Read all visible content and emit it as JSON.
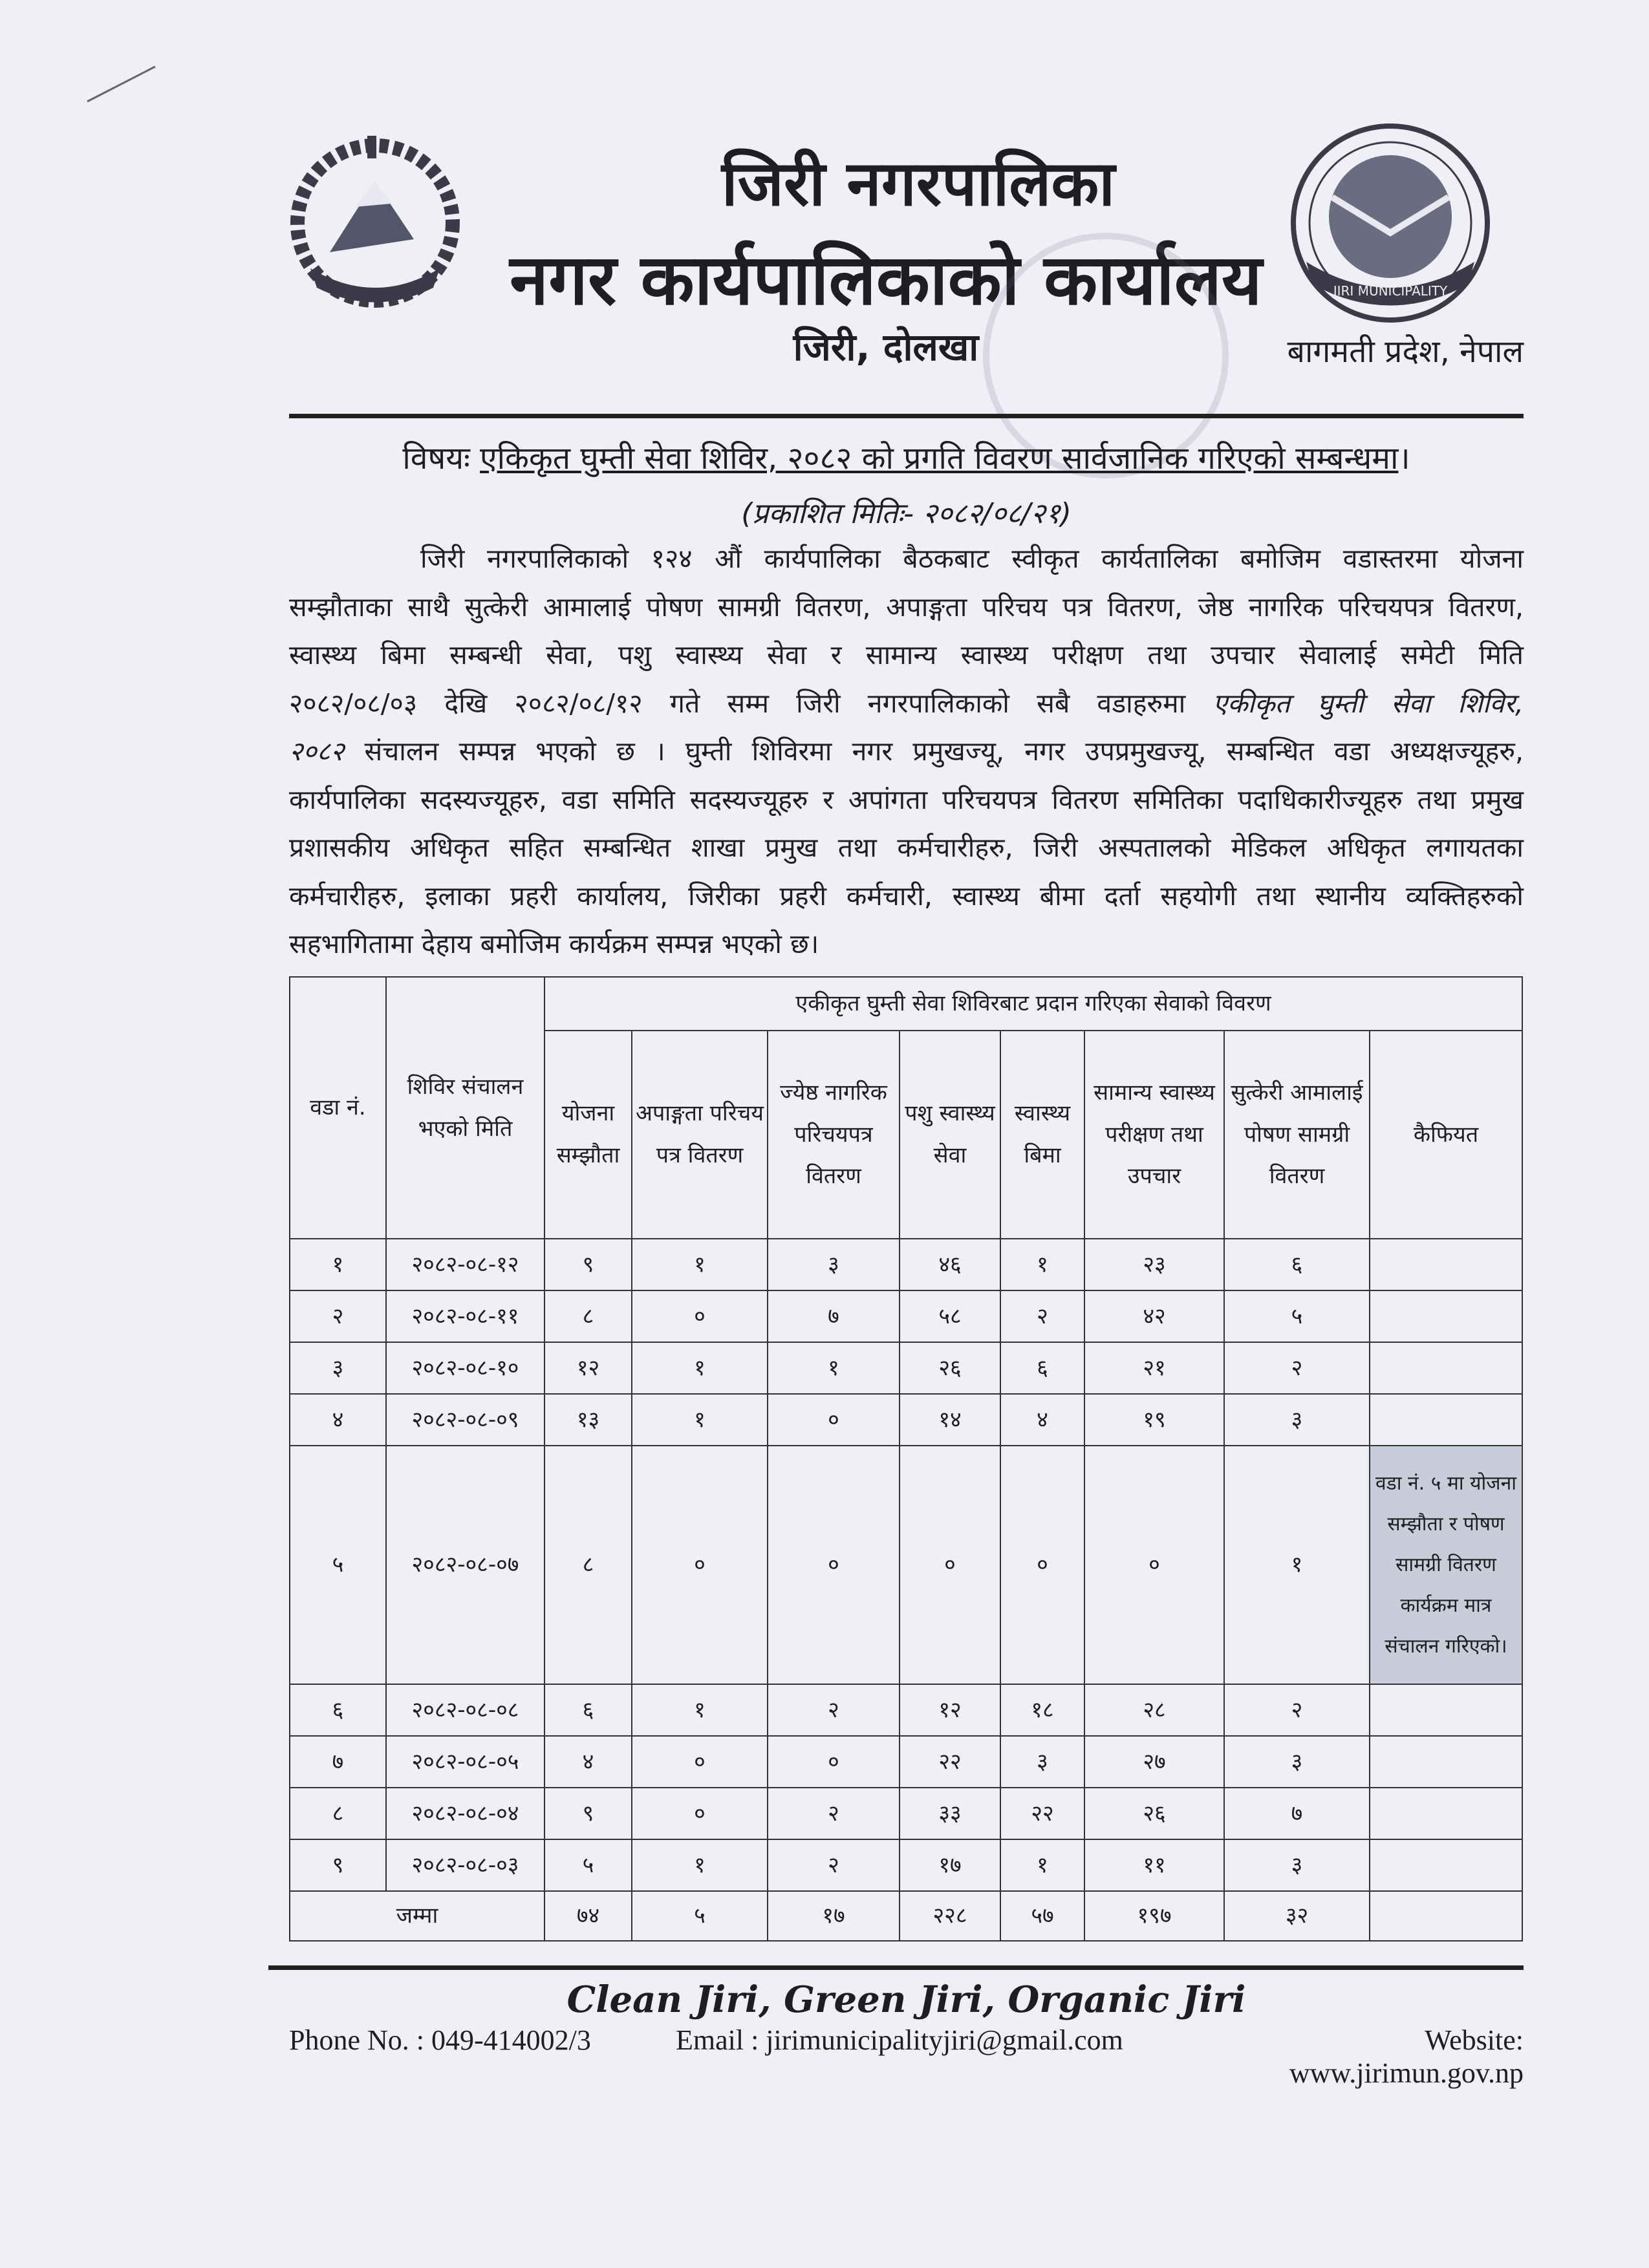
{
  "header": {
    "title_line1": "जिरी नगरपालिका",
    "title_line2": "नगर कार्यपालिकाको कार्यालय",
    "location": "जिरी, दोलखा",
    "province": "बागमती प्रदेश, नेपाल",
    "left_logo": "nepal-government-emblem",
    "right_logo": "jiri-municipality-logo",
    "right_logo_text": "JIRI MUNICIPALITY"
  },
  "subject": {
    "prefix": "विषयः",
    "text": "एकिकृत घुम्ती सेवा शिविर, २०८२ को प्रगति विवरण सार्वजानिक गरिएको सम्बन्धमा",
    "suffix": "।"
  },
  "published_date": "(प्रकाशित मितिः- २०८२/०८/२१)",
  "body_lines": [
    {
      "a": "जिरी नगरपालिकाको १२४ औं कार्यपालिका बैठकबाट स्वीकृत कार्यतालिका बमोजिम वडास्तरमा योजना"
    },
    {
      "a": "सम्झौताका साथै सुत्केरी आमालाई पोषण सामग्री वितरण, अपाङ्गता परिचय पत्र वितरण, जेष्ठ नागरिक परिचयपत्र वितरण,"
    },
    {
      "a": "स्वास्थ्य बिमा सम्बन्धी सेवा, पशु स्वास्थ्य सेवा र सामान्य स्वास्थ्य परीक्षण तथा उपचार सेवालाई समेटी मिति"
    },
    {
      "a": "२०८२/०८/०३ देखि २०८२/०८/१२ गते सम्म जिरी नगरपालिकाको सबै वडाहरुमा ",
      "b": "एकीकृत घुम्ती सेवा शिविर,"
    },
    {
      "b": "२०८२",
      "a": " संचालन सम्पन्न भएको छ । घुम्ती शिविरमा नगर प्रमुखज्यू, नगर उपप्रमुखज्यू, सम्बन्धित वडा अध्यक्षज्यूहरु,"
    },
    {
      "a": "कार्यपालिका सदस्यज्यूहरु, वडा समिति सदस्यज्यूहरु र अपांगता परिचयपत्र वितरण समितिका पदाधिकारीज्यूहरु तथा प्रमुख"
    },
    {
      "a": "प्रशासकीय अधिकृत सहित सम्बन्धित शाखा प्रमुख तथा कर्मचारीहरु, जिरी अस्पतालको मेडिकल अधिकृत लगायतका"
    },
    {
      "a": "कर्मचारीहरु, इलाका प्रहरी कार्यालय, जिरीका प्रहरी कर्मचारी, स्वास्थ्य बीमा दर्ता सहयोगी तथा स्थानीय व्यक्तिहरुको"
    },
    {
      "a": "सहभागितामा देहाय बमोजिम कार्यक्रम सम्पन्न भएको छ।"
    }
  ],
  "table": {
    "col_ward": "वडा नं.",
    "col_date": "शिविर संचालन भएको मिति",
    "group_header": "एकीकृत घुम्ती सेवा शिविरबाट प्रदान गरिएका सेवाको विवरण",
    "service_columns": [
      "योजना सम्झौता",
      "अपाङ्गता परिचय पत्र वितरण",
      "ज्येष्ठ नागरिक परिचयपत्र वितरण",
      "पशु स्वास्थ्य सेवा",
      "स्वास्थ्य बिमा",
      "सामान्य स्वास्थ्य परीक्षण तथा उपचार",
      "सुत्केरी आमालाई पोषण सामग्री वितरण"
    ],
    "col_remarks": "कैफियत",
    "rows": [
      {
        "ward": "१",
        "date": "२०८२-०८-१२",
        "values": [
          "९",
          "१",
          "३",
          "४६",
          "१",
          "२३",
          "६"
        ],
        "remarks": ""
      },
      {
        "ward": "२",
        "date": "२०८२-०८-११",
        "values": [
          "८",
          "०",
          "७",
          "५८",
          "२",
          "४२",
          "५"
        ],
        "remarks": ""
      },
      {
        "ward": "३",
        "date": "२०८२-०८-१०",
        "values": [
          "१२",
          "१",
          "१",
          "२६",
          "६",
          "२१",
          "२"
        ],
        "remarks": ""
      },
      {
        "ward": "४",
        "date": "२०८२-०८-०९",
        "values": [
          "१३",
          "१",
          "०",
          "१४",
          "४",
          "१९",
          "३"
        ],
        "remarks": ""
      },
      {
        "ward": "५",
        "date": "२०८२-०८-०७",
        "values": [
          "८",
          "०",
          "०",
          "०",
          "०",
          "०",
          "१"
        ],
        "remarks": "वडा नं. ५ मा योजना सम्झौता र पोषण सामग्री वितरण कार्यक्रम मात्र संचालन गरिएको।"
      },
      {
        "ward": "६",
        "date": "२०८२-०८-०८",
        "values": [
          "६",
          "१",
          "२",
          "१२",
          "१८",
          "२८",
          "२"
        ],
        "remarks": ""
      },
      {
        "ward": "७",
        "date": "२०८२-०८-०५",
        "values": [
          "४",
          "०",
          "०",
          "२२",
          "३",
          "२७",
          "३"
        ],
        "remarks": ""
      },
      {
        "ward": "८",
        "date": "२०८२-०८-०४",
        "values": [
          "९",
          "०",
          "२",
          "३३",
          "२२",
          "२६",
          "७"
        ],
        "remarks": ""
      },
      {
        "ward": "९",
        "date": "२०८२-०८-०३",
        "values": [
          "५",
          "१",
          "२",
          "१७",
          "१",
          "११",
          "३"
        ],
        "remarks": ""
      }
    ],
    "total_label": "जम्मा",
    "totals": [
      "७४",
      "५",
      "१७",
      "२२८",
      "५७",
      "१९७",
      "३२"
    ],
    "remarks_highlight_color": "#c9ccd9"
  },
  "footer": {
    "slogan": "Clean Jiri, Green Jiri, Organic Jiri",
    "phone": "Phone No. : 049-414002/3",
    "email": "Email : jirimunicipalityjiri@gmail.com",
    "website": "Website: www.jirimun.gov.np"
  }
}
